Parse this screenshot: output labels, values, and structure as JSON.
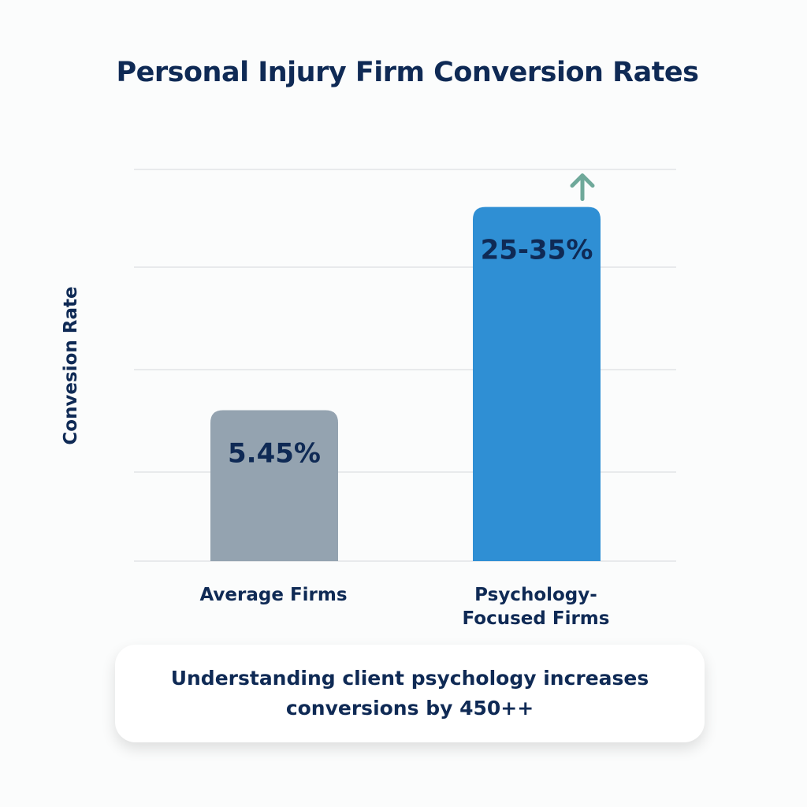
{
  "chart_data": {
    "type": "bar",
    "title": "Personal Injury Firm Conversion Rates",
    "ylabel": "Convesion Rate",
    "xlabel": "",
    "categories": [
      "Average Firms",
      "Psychology-Focused Firms"
    ],
    "values": [
      5.45,
      30
    ],
    "value_ranges": [
      [
        5.45,
        5.45
      ],
      [
        25,
        35
      ]
    ],
    "data_labels": [
      "5.45%",
      "25-35%"
    ],
    "colors": [
      "#94a3b0",
      "#2f8fd4"
    ],
    "grid": true,
    "annotation_icon": "arrow-up-icon",
    "annotation_color": "#6fa99a",
    "footnote": "Understanding client psychology increases conversions by 450++"
  }
}
